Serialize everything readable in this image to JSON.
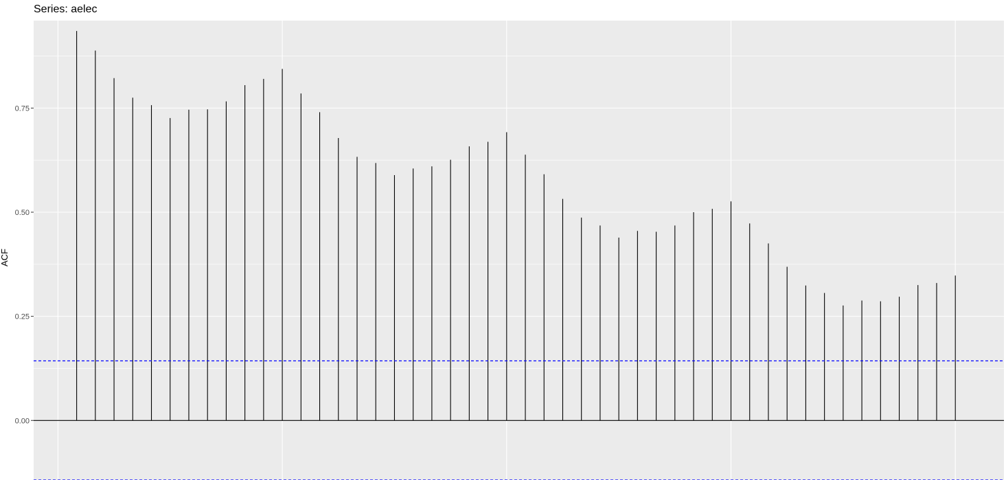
{
  "chart_data": {
    "type": "bar",
    "subtype": "acf-lollipop",
    "title": "Series: aelec",
    "xlabel": "",
    "ylabel": "ACF",
    "ylim": [
      -0.143,
      0.96
    ],
    "xlim": [
      -1.3,
      50.6
    ],
    "y_ticks": [
      0.0,
      0.25,
      0.5,
      0.75
    ],
    "y_tick_labels": [
      "0.00",
      "0.25",
      "0.50",
      "0.75"
    ],
    "x_major_grid": [
      0,
      12,
      24,
      36,
      48
    ],
    "y_minor_grid": [
      0.125,
      0.375,
      0.625,
      0.875
    ],
    "grid": true,
    "panel_background": "#ebebeb",
    "grid_color": "#ffffff",
    "bar_color": "#000000",
    "zero_line_color": "#000000",
    "confidence_color": "#0000ff",
    "confidence_bound": 0.143,
    "lags": [
      1,
      2,
      3,
      4,
      5,
      6,
      7,
      8,
      9,
      10,
      11,
      12,
      13,
      14,
      15,
      16,
      17,
      18,
      19,
      20,
      21,
      22,
      23,
      24,
      25,
      26,
      27,
      28,
      29,
      30,
      31,
      32,
      33,
      34,
      35,
      36,
      37,
      38,
      39,
      40,
      41,
      42,
      43,
      44,
      45,
      46,
      47,
      48
    ],
    "values": [
      0.935,
      0.888,
      0.822,
      0.775,
      0.757,
      0.726,
      0.746,
      0.747,
      0.766,
      0.805,
      0.82,
      0.844,
      0.785,
      0.74,
      0.678,
      0.633,
      0.618,
      0.589,
      0.605,
      0.61,
      0.626,
      0.658,
      0.669,
      0.692,
      0.638,
      0.591,
      0.532,
      0.487,
      0.468,
      0.439,
      0.455,
      0.453,
      0.468,
      0.5,
      0.508,
      0.526,
      0.473,
      0.425,
      0.369,
      0.324,
      0.306,
      0.276,
      0.288,
      0.286,
      0.297,
      0.325,
      0.33,
      0.348
    ]
  }
}
